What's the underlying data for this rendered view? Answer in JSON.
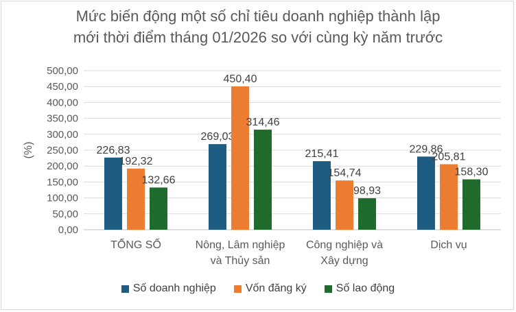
{
  "chart_data": {
    "type": "bar",
    "title_lines": [
      "Mức biến động một số chỉ tiêu doanh nghiệp thành lập",
      "mới thời điểm tháng 01/2026 so với cùng kỳ năm trước"
    ],
    "ylabel": "(%)",
    "xlabel": "",
    "ylim": [
      0,
      500
    ],
    "y_ticks": [
      "0,00",
      "50,00",
      "100,00",
      "150,00",
      "200,00",
      "250,00",
      "300,00",
      "350,00",
      "400,00",
      "450,00",
      "500,00"
    ],
    "categories": [
      [
        "TỔNG SỐ"
      ],
      [
        "Nông, Lâm nghiệp",
        "và Thủy sản"
      ],
      [
        "Công nghiệp và",
        "Xây dựng"
      ],
      [
        "Dịch vụ"
      ]
    ],
    "series": [
      {
        "name": "Số doanh nghiệp",
        "color": "#1f5c82",
        "values": [
          226.83,
          269.03,
          215.41,
          229.86
        ],
        "labels": [
          "226,83",
          "269,03",
          "215,41",
          "229,86"
        ]
      },
      {
        "name": "Vốn đăng ký",
        "color": "#ed7d31",
        "values": [
          192.32,
          450.4,
          154.74,
          205.81
        ],
        "labels": [
          "192,32",
          "450,40",
          "154,74",
          "205,81"
        ]
      },
      {
        "name": "Số lao động",
        "color": "#1e6b2b",
        "values": [
          132.66,
          314.46,
          98.93,
          158.3
        ],
        "labels": [
          "132,66",
          "314,46",
          "98,93",
          "158,30"
        ]
      }
    ],
    "grid": true,
    "legend_position": "bottom"
  }
}
